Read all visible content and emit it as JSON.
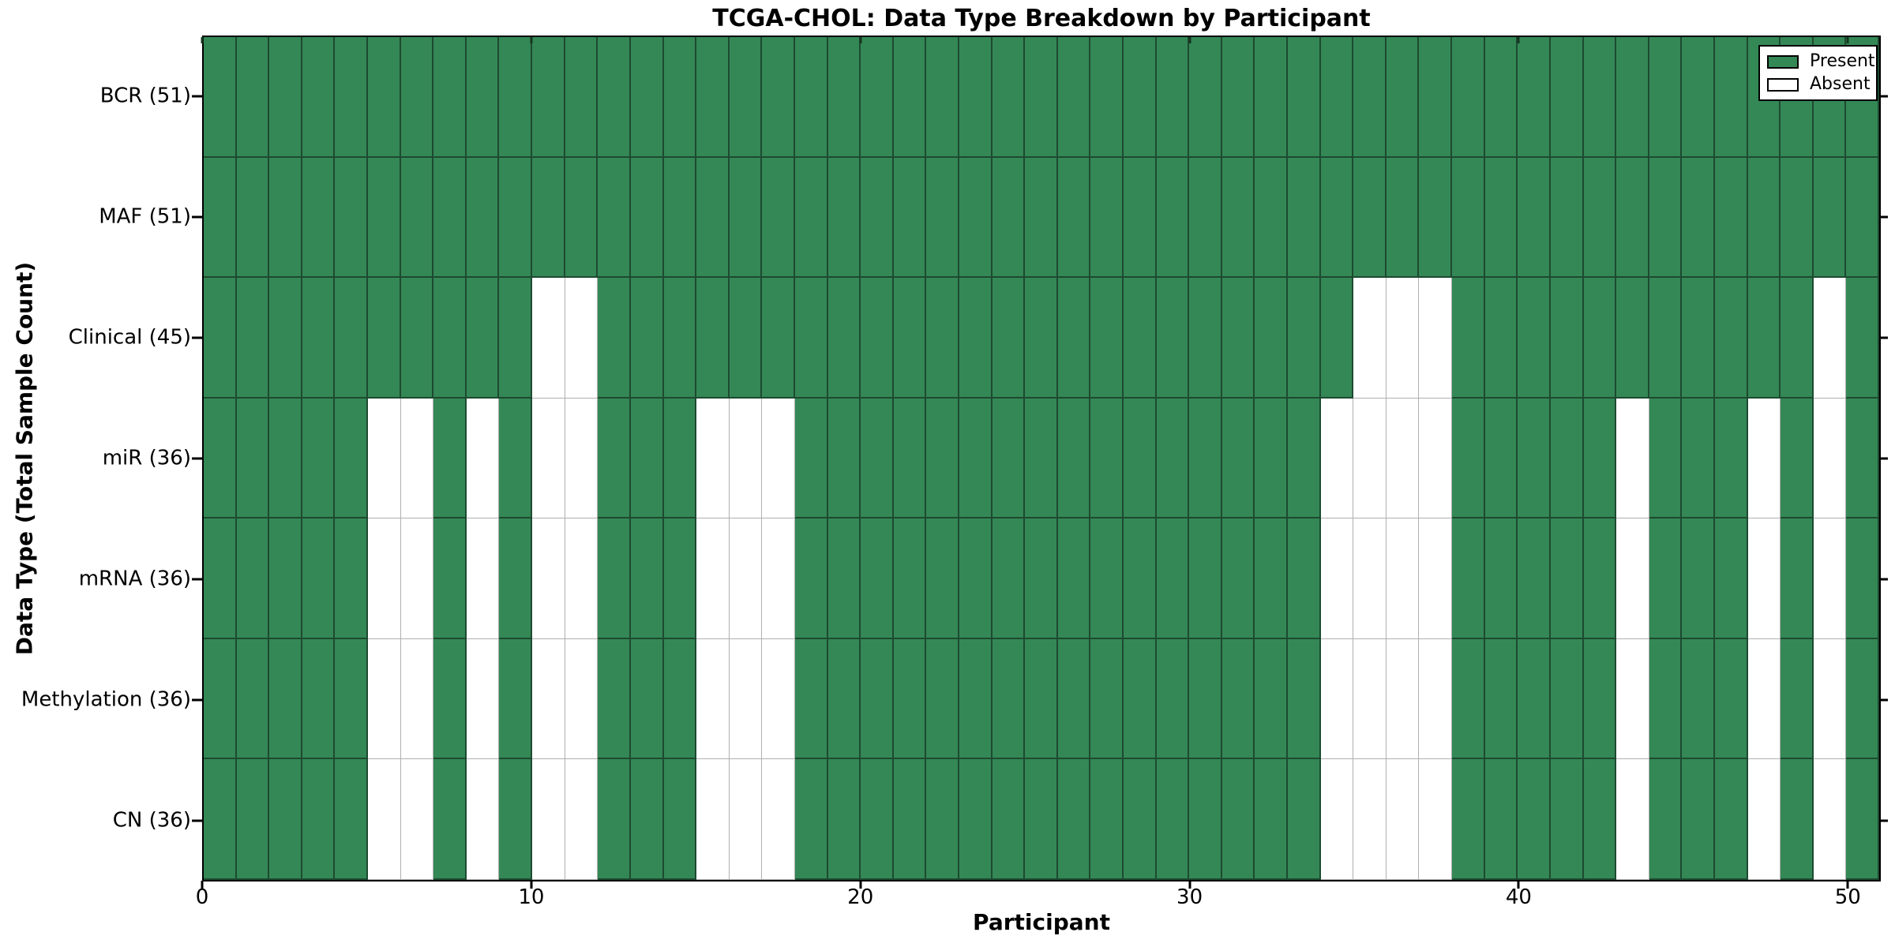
{
  "chart_data": {
    "type": "heatmap",
    "title": "TCGA-CHOL: Data Type Breakdown by Participant",
    "xlabel": "Participant",
    "ylabel": "Data Type (Total Sample Count)",
    "n_participants": 51,
    "x_range": [
      0,
      51
    ],
    "x_ticks": [
      0,
      10,
      20,
      30,
      40,
      50
    ],
    "legend_position": "upper right",
    "grid": "cell-edges",
    "legend": [
      {
        "label": "Present",
        "color": "#348856"
      },
      {
        "label": "Absent",
        "color": "#ffffff"
      }
    ],
    "rows": [
      {
        "label": "BCR (51)",
        "data_type": "BCR",
        "total_samples": 51,
        "absent_participants": []
      },
      {
        "label": "MAF (51)",
        "data_type": "MAF",
        "total_samples": 51,
        "absent_participants": []
      },
      {
        "label": "Clinical (45)",
        "data_type": "Clinical",
        "total_samples": 45,
        "absent_participants": [
          10,
          11,
          35,
          36,
          37,
          49
        ]
      },
      {
        "label": "miR (36)",
        "data_type": "miR",
        "total_samples": 36,
        "absent_participants": [
          5,
          6,
          8,
          10,
          11,
          15,
          16,
          17,
          34,
          35,
          36,
          37,
          43,
          47,
          49
        ]
      },
      {
        "label": "mRNA (36)",
        "data_type": "mRNA",
        "total_samples": 36,
        "absent_participants": [
          5,
          6,
          8,
          10,
          11,
          15,
          16,
          17,
          34,
          35,
          36,
          37,
          43,
          47,
          49
        ]
      },
      {
        "label": "Methylation (36)",
        "data_type": "Methylation",
        "total_samples": 36,
        "absent_participants": [
          5,
          6,
          8,
          10,
          11,
          15,
          16,
          17,
          34,
          35,
          36,
          37,
          43,
          47,
          49
        ]
      },
      {
        "label": "CN (36)",
        "data_type": "CN",
        "total_samples": 36,
        "absent_participants": [
          5,
          6,
          8,
          10,
          11,
          15,
          16,
          17,
          34,
          35,
          36,
          37,
          43,
          47,
          49
        ]
      }
    ],
    "colors": {
      "present": "#348856",
      "absent": "#ffffff",
      "present_edge": "#1d4a30",
      "absent_edge": "#b0b0b0",
      "spine": "#000000",
      "background": "#ffffff",
      "text": "#000000"
    }
  }
}
